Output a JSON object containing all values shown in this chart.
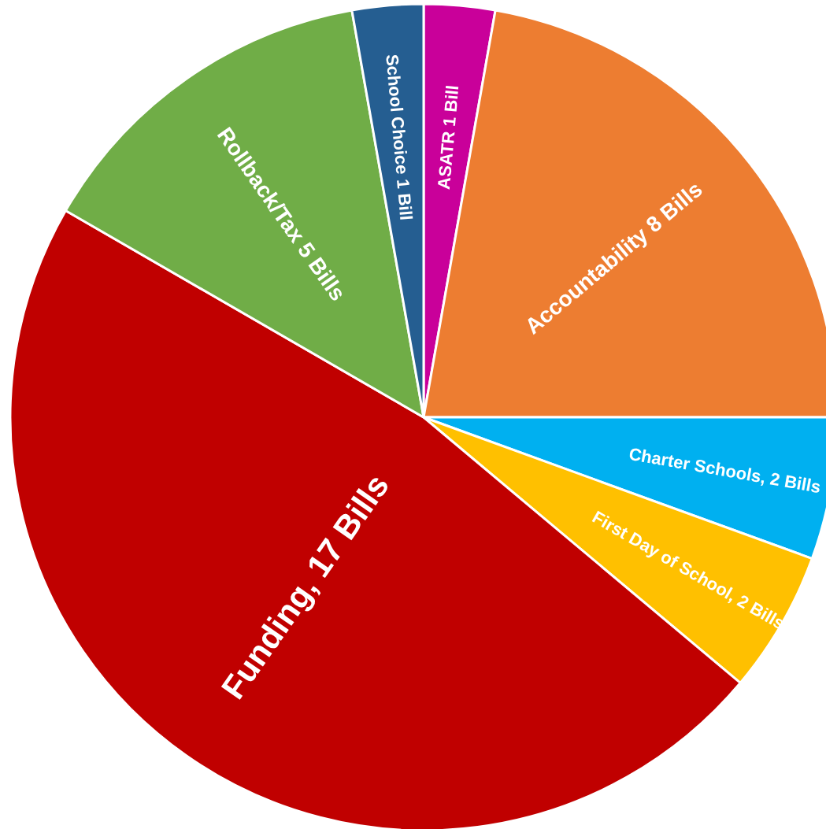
{
  "chart_data": {
    "type": "pie",
    "categories": [
      "ASATR 1 Bill",
      "Accountability 8 Bills",
      "Charter Schools, 2 Bills",
      "First Day of School, 2 Bills",
      "Funding, 17 Bills",
      "Rollback/Tax 5 Bills",
      "School Choice 1 Bill"
    ],
    "values": [
      1,
      8,
      2,
      2,
      17,
      5,
      1
    ],
    "colors": [
      "#c9009a",
      "#ed7d31",
      "#00b0f0",
      "#ffc000",
      "#c00000",
      "#70ad47",
      "#255e91"
    ]
  }
}
